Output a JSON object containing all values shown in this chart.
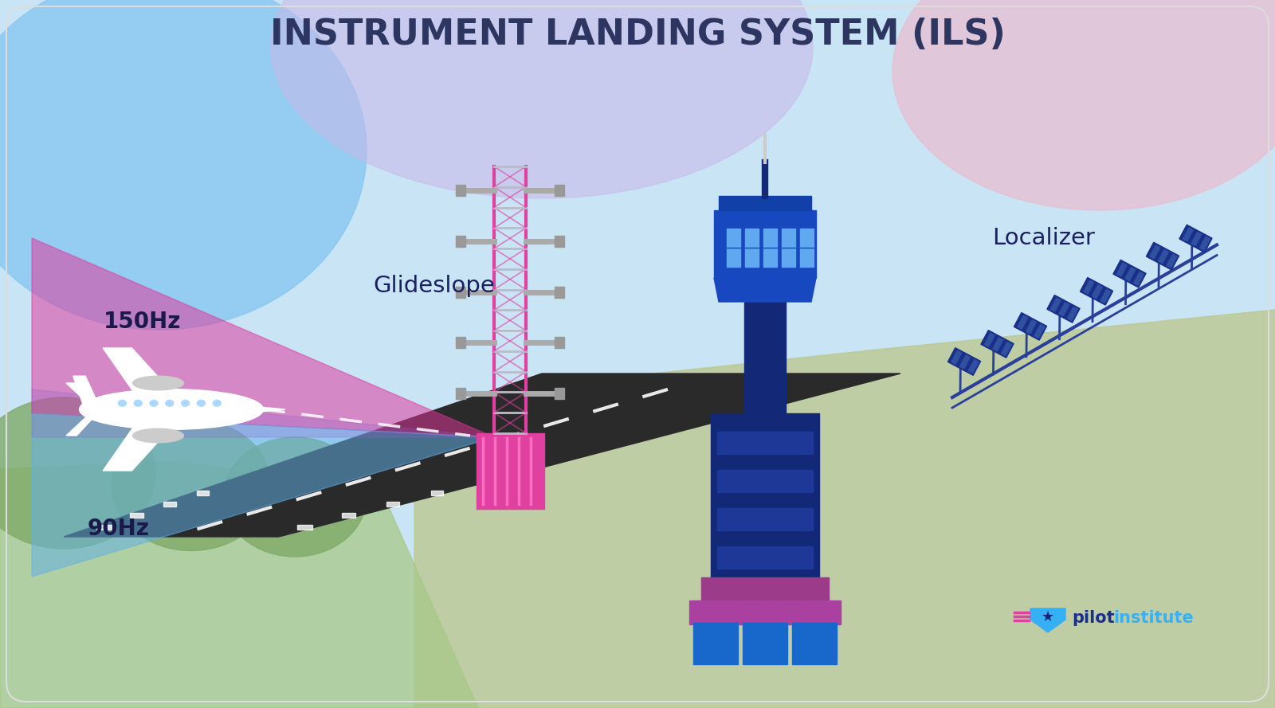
{
  "title": "INSTRUMENT LANDING SYSTEM (ILS)",
  "title_color": "#2d3561",
  "title_fontsize": 32,
  "freq_label_150": "150Hz",
  "freq_label_90": "90Hz",
  "freq_150hz_color": "#e0359a",
  "freq_90hz_color": "#60b0e8",
  "glideslope_label": "Glideslope",
  "localizer_label": "Localizer",
  "tower_dark_blue": "#142878",
  "tower_mid_blue": "#1848c0",
  "tower_light_blue": "#60a8f0",
  "tower_purple": "#9b3b8a",
  "glideslope_pink": "#e040a0",
  "localizer_navy": "#1a2f8a",
  "pilot_dark": "#1a2f8a",
  "pilot_blue": "#3ab0f0",
  "pilot_pink": "#e040a0",
  "runway_color": "#2a2a2a",
  "bg_base": "#c8e4f5",
  "sky_blue_blob": "#85c5f0",
  "sky_purple_blob": "#c8b8e8",
  "sky_pink_blob": "#eeb8cc",
  "ground_right": "#bcc890",
  "ground_left": "#a8c888",
  "tree_color": "#80aa68"
}
